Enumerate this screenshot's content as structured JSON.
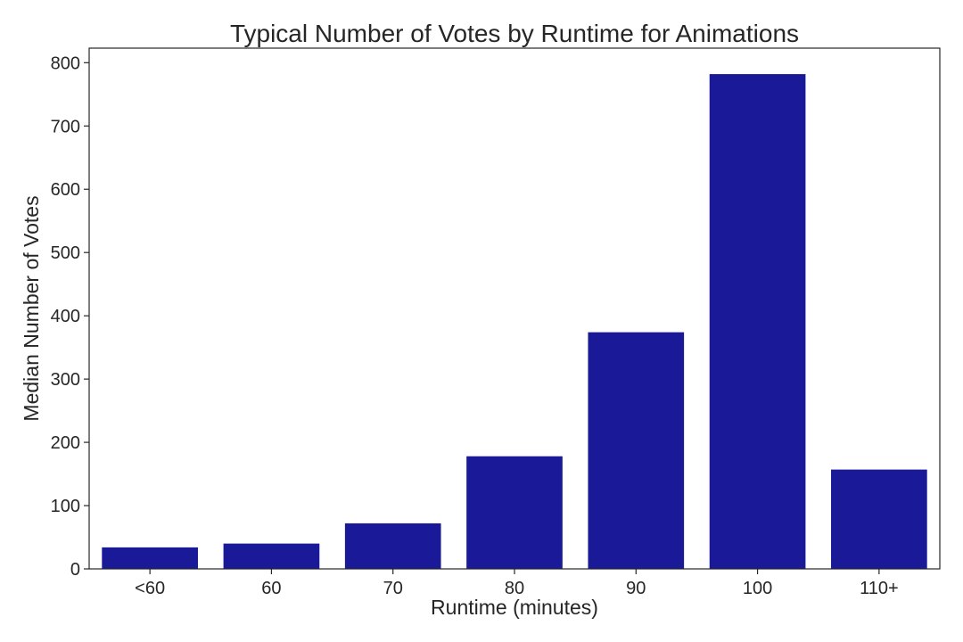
{
  "chart_data": {
    "type": "bar",
    "title": "Typical Number of Votes by Runtime for Animations",
    "xlabel": "Runtime (minutes)",
    "ylabel": "Median Number of Votes",
    "categories": [
      "<60",
      "60",
      "70",
      "80",
      "90",
      "100",
      "110+"
    ],
    "values": [
      34,
      40,
      72,
      178,
      374,
      782,
      157
    ],
    "ylim": [
      0,
      823
    ],
    "yticks": [
      0,
      100,
      200,
      300,
      400,
      500,
      600,
      700,
      800
    ],
    "grid": false,
    "bar_color": "#1a1a99"
  }
}
